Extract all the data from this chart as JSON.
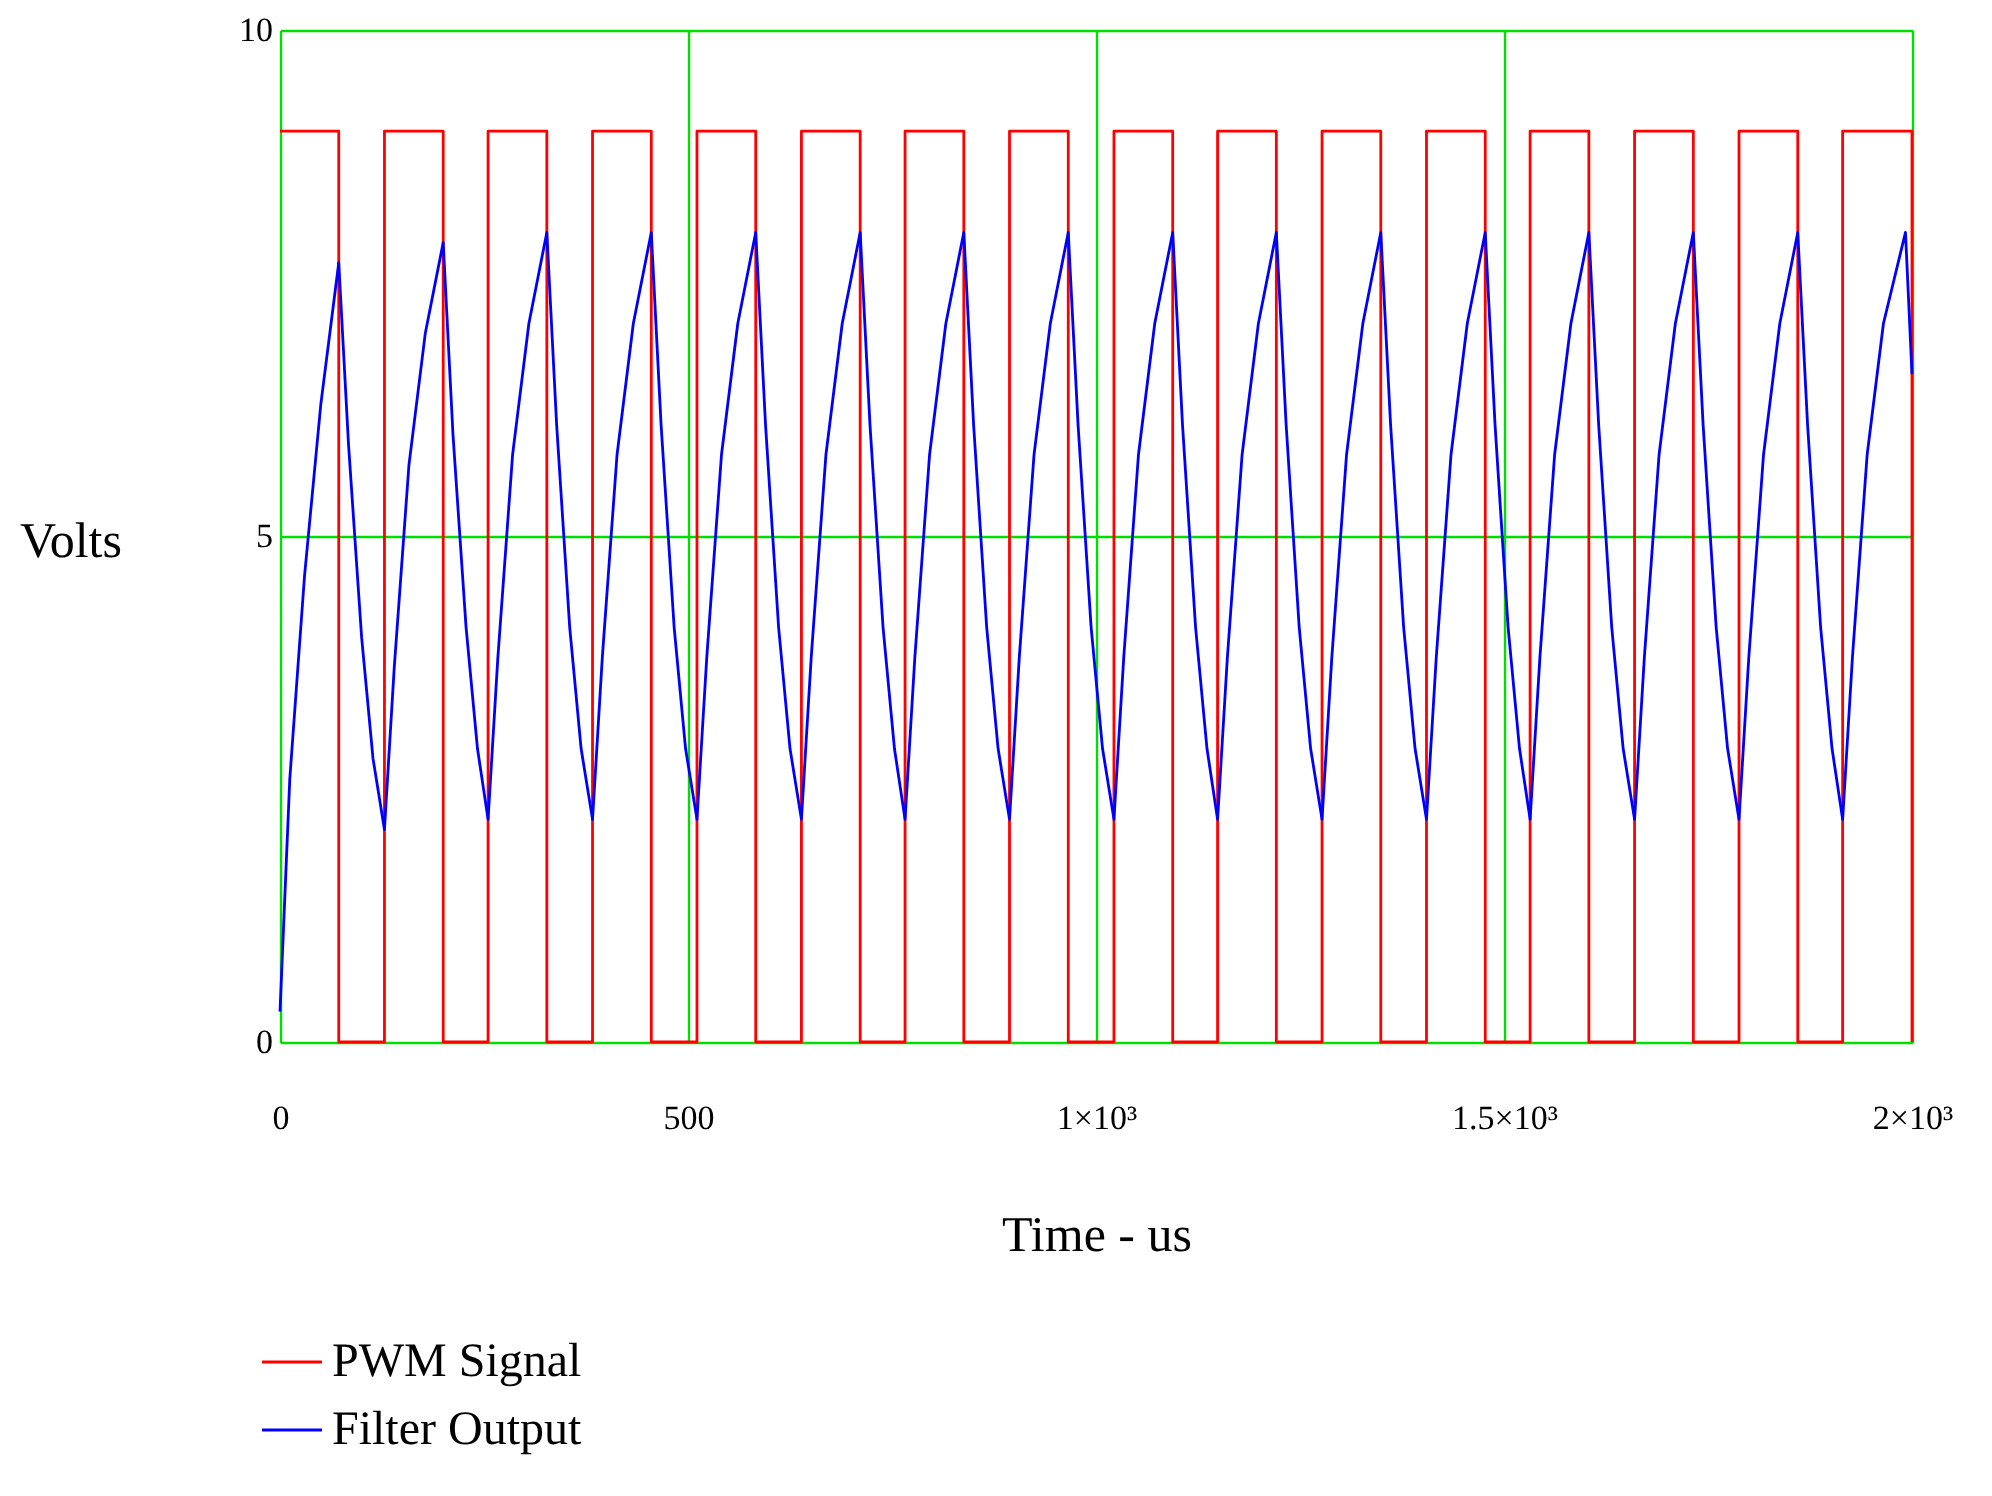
{
  "chart_data": {
    "type": "line",
    "xlabel": "Time - us",
    "ylabel": "Volts",
    "xlim": [
      0,
      2000
    ],
    "ylim": [
      0,
      10
    ],
    "xticks": [
      0,
      500,
      {
        "value": 1000,
        "label": "1×10³"
      },
      {
        "value": 1500,
        "label": "1.5×10³"
      },
      {
        "value": 2000,
        "label": "2×10³"
      }
    ],
    "yticks": [
      0,
      5,
      10
    ],
    "grid": true,
    "legend": "bottom",
    "line_style": "solid",
    "series": [
      {
        "name": "PWM Signal",
        "color": "#ff0000",
        "x": [
          0,
          72,
          72,
          128,
          128,
          200,
          200,
          255,
          255,
          327,
          327,
          383,
          383,
          455,
          455,
          511,
          511,
          583,
          583,
          639,
          639,
          711,
          711,
          766,
          766,
          838,
          838,
          894,
          894,
          966,
          966,
          1022,
          1022,
          1094,
          1094,
          1149,
          1149,
          1221,
          1221,
          1277,
          1277,
          1349,
          1349,
          1405,
          1405,
          1477,
          1477,
          1532,
          1532,
          1604,
          1604,
          1660,
          1660,
          1732,
          1732,
          1788,
          1788,
          1860,
          1860,
          1915,
          1915,
          2000,
          2000
        ],
        "values": [
          9,
          9,
          0,
          0,
          9,
          9,
          0,
          0,
          9,
          9,
          0,
          0,
          9,
          9,
          0,
          0,
          9,
          9,
          0,
          0,
          9,
          9,
          0,
          0,
          9,
          9,
          0,
          0,
          9,
          9,
          0,
          0,
          9,
          9,
          0,
          0,
          9,
          9,
          0,
          0,
          9,
          9,
          0,
          0,
          9,
          9,
          0,
          0,
          9,
          9,
          0,
          0,
          9,
          9,
          0,
          0,
          9,
          9,
          0,
          0,
          9,
          9,
          0
        ]
      },
      {
        "name": "Filter Output",
        "color": "#0000ff",
        "x": [
          0,
          12,
          30,
          50,
          72,
          84,
          100,
          114,
          128,
          140,
          158,
          178,
          200,
          212,
          228,
          242,
          255,
          267,
          285,
          305,
          327,
          339,
          355,
          369,
          383,
          395,
          413,
          433,
          455,
          467,
          483,
          497,
          511,
          523,
          541,
          561,
          583,
          595,
          611,
          625,
          639,
          651,
          669,
          689,
          711,
          723,
          739,
          753,
          766,
          778,
          796,
          816,
          838,
          850,
          866,
          880,
          894,
          906,
          924,
          944,
          966,
          978,
          994,
          1008,
          1022,
          1034,
          1052,
          1072,
          1094,
          1106,
          1122,
          1136,
          1149,
          1161,
          1179,
          1199,
          1221,
          1233,
          1249,
          1263,
          1277,
          1289,
          1307,
          1327,
          1349,
          1361,
          1377,
          1391,
          1405,
          1417,
          1435,
          1455,
          1477,
          1489,
          1505,
          1519,
          1532,
          1544,
          1562,
          1582,
          1604,
          1616,
          1632,
          1646,
          1660,
          1672,
          1690,
          1710,
          1732,
          1744,
          1760,
          1774,
          1788,
          1800,
          1818,
          1838,
          1860,
          1872,
          1888,
          1902,
          1915,
          1927,
          1945,
          1965,
          1992,
          2000
        ],
        "values": [
          0.3,
          2.6,
          4.6,
          6.3,
          7.7,
          5.9,
          4.0,
          2.8,
          2.1,
          3.7,
          5.7,
          7.0,
          7.9,
          6.0,
          4.1,
          2.9,
          2.2,
          3.8,
          5.8,
          7.1,
          8.0,
          6.1,
          4.1,
          2.9,
          2.2,
          3.8,
          5.8,
          7.1,
          8.0,
          6.1,
          4.1,
          2.9,
          2.2,
          3.8,
          5.8,
          7.1,
          8.0,
          6.1,
          4.1,
          2.9,
          2.2,
          3.8,
          5.8,
          7.1,
          8.0,
          6.1,
          4.1,
          2.9,
          2.2,
          3.8,
          5.8,
          7.1,
          8.0,
          6.1,
          4.1,
          2.9,
          2.2,
          3.8,
          5.8,
          7.1,
          8.0,
          6.1,
          4.1,
          2.9,
          2.2,
          3.8,
          5.8,
          7.1,
          8.0,
          6.1,
          4.1,
          2.9,
          2.2,
          3.8,
          5.8,
          7.1,
          8.0,
          6.1,
          4.1,
          2.9,
          2.2,
          3.8,
          5.8,
          7.1,
          8.0,
          6.1,
          4.1,
          2.9,
          2.2,
          3.8,
          5.8,
          7.1,
          8.0,
          6.1,
          4.1,
          2.9,
          2.2,
          3.8,
          5.8,
          7.1,
          8.0,
          6.1,
          4.1,
          2.9,
          2.2,
          3.8,
          5.8,
          7.1,
          8.0,
          6.1,
          4.1,
          2.9,
          2.2,
          3.8,
          5.8,
          7.1,
          8.0,
          6.1,
          4.1,
          2.9,
          2.2,
          3.8,
          5.8,
          7.1,
          8.0,
          6.6
        ]
      }
    ]
  }
}
